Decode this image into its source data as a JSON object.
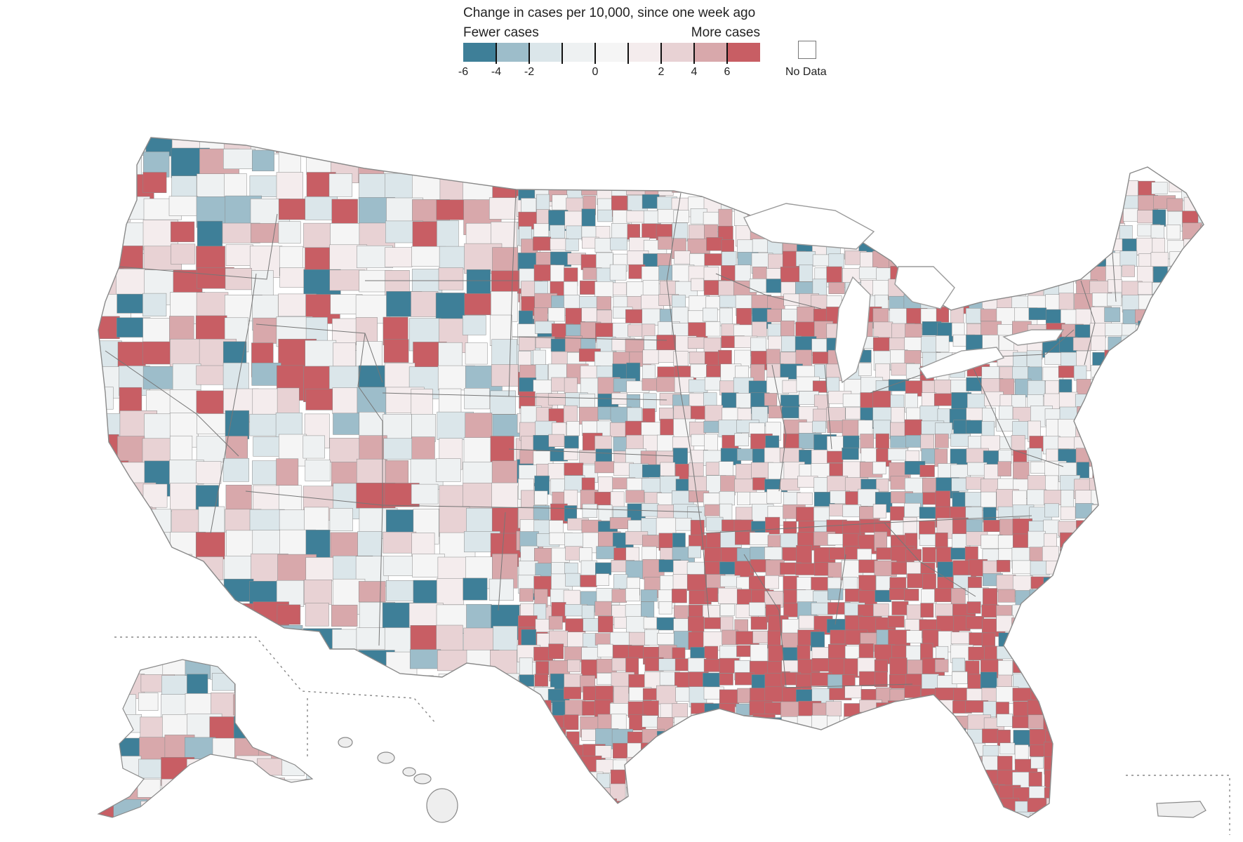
{
  "legend": {
    "title": "Change in cases per 10,000, since one week ago",
    "fewer_label": "Fewer cases",
    "more_label": "More cases",
    "no_data_label": "No Data",
    "bins": [
      {
        "color": "#3e7f98"
      },
      {
        "color": "#9dbdca"
      },
      {
        "color": "#dbe6ea"
      },
      {
        "color": "#eef1f2"
      },
      {
        "color": "#f5f5f5"
      },
      {
        "color": "#f4eced"
      },
      {
        "color": "#e8d2d4"
      },
      {
        "color": "#d8a8ab"
      },
      {
        "color": "#c85e64"
      }
    ],
    "ticks": [
      "-6",
      "-4",
      "-2",
      "",
      "0",
      "",
      "2",
      "4",
      "6"
    ]
  },
  "colors": {
    "border": "#8a8a8a",
    "state_border": "#666666",
    "ocean_outline": "#9a9a9a",
    "inset_frame": "#888888"
  },
  "map": {
    "regions": [
      "contiguous-us",
      "alaska",
      "hawaii",
      "puerto-rico"
    ]
  }
}
